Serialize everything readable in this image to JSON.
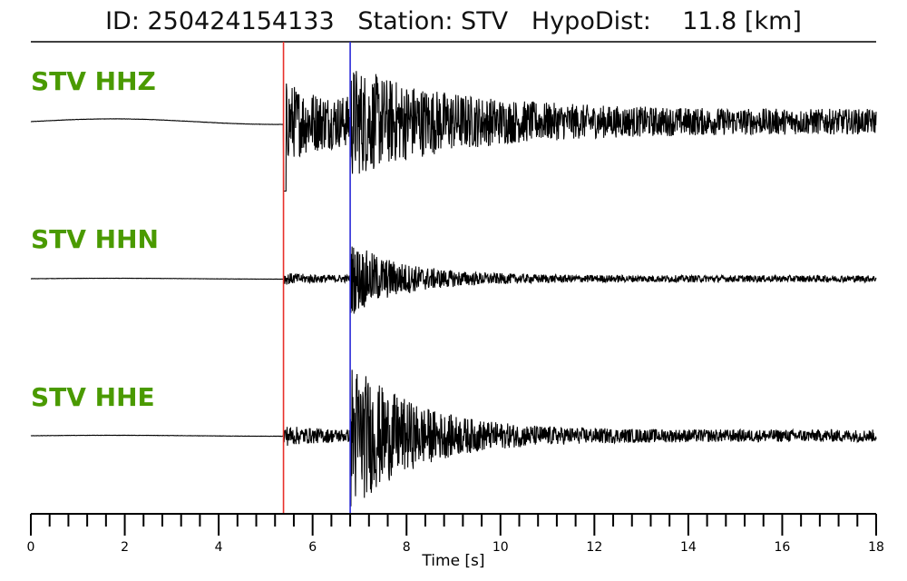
{
  "header": {
    "title": "ID: 250424154133   Station: STV   HypoDist:    11.8 [km]"
  },
  "colors": {
    "label": "#4a9a00",
    "p_pick": "#e8302a",
    "s_pick": "#2a2ad8",
    "trace": "#000000"
  },
  "chart_data": {
    "type": "line",
    "title": "ID: 250424154133   Station: STV   HypoDist:    11.8 [km]",
    "xlabel": "Time [s]",
    "ylabel": "",
    "xlim": [
      0,
      18
    ],
    "x_ticks": [
      0,
      2,
      4,
      6,
      8,
      10,
      12,
      14,
      16,
      18
    ],
    "x_tick_labels": [
      "0",
      "2",
      "4",
      "6",
      "8",
      "10",
      "12",
      "14",
      "16",
      "18"
    ],
    "minor_tick_step": 0.4,
    "grid": false,
    "picks": [
      {
        "phase": "P",
        "time": 5.38,
        "color": "#e8302a"
      },
      {
        "phase": "S",
        "time": 6.8,
        "color": "#2a2ad8"
      }
    ],
    "series": [
      {
        "name": "STV HHZ",
        "pre_amp": 0.06,
        "p_amp": 0.55,
        "s_amp": 0.75,
        "tail_amp": 0.16,
        "decay": 0.28
      },
      {
        "name": "STV HHN",
        "pre_amp": 0.01,
        "p_amp": 0.09,
        "s_amp": 0.55,
        "tail_amp": 0.05,
        "decay": 0.55
      },
      {
        "name": "STV HHE",
        "pre_amp": 0.01,
        "p_amp": 0.14,
        "s_amp": 1.0,
        "tail_amp": 0.08,
        "decay": 0.45
      }
    ]
  }
}
